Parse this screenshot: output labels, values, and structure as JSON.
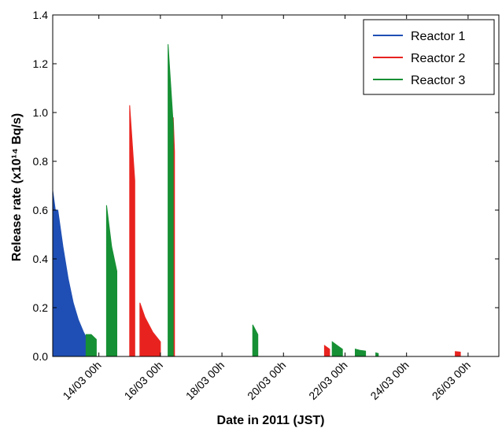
{
  "chart_data": {
    "type": "area",
    "title": "",
    "xlabel": "Date in 2011 (JST)",
    "ylabel": "Release rate (x10¹⁴ Bq/s)",
    "ylim": [
      0,
      1.4
    ],
    "xlim": [
      "2011-03-12T12:00",
      "2011-03-27T00:00"
    ],
    "yticks": [
      0.0,
      0.2,
      0.4,
      0.6,
      0.8,
      1.0,
      1.2,
      1.4
    ],
    "ytick_labels": [
      "0.0",
      "0.2",
      "0.4",
      "0.6",
      "0.8",
      "1.0",
      "1.2",
      "1.4"
    ],
    "xticks": [
      "2011-03-14T00:00",
      "2011-03-16T00:00",
      "2011-03-18T00:00",
      "2011-03-20T00:00",
      "2011-03-22T00:00",
      "2011-03-24T00:00",
      "2011-03-26T00:00"
    ],
    "xtick_labels": [
      "14/03 00h",
      "16/03 00h",
      "18/03 00h",
      "20/03 00h",
      "22/03 00h",
      "24/03 00h",
      "26/03 00h"
    ],
    "grid": false,
    "legend_position": "top-right",
    "series": [
      {
        "name": "Reactor 1",
        "color": "#1f4fb4",
        "segments": [
          [
            [
              "2011-03-12T12:00",
              0.68
            ],
            [
              "2011-03-12T14:00",
              0.6
            ],
            [
              "2011-03-12T16:00",
              0.6
            ],
            [
              "2011-03-12T20:00",
              0.45
            ],
            [
              "2011-03-13T00:00",
              0.32
            ],
            [
              "2011-03-13T04:00",
              0.22
            ],
            [
              "2011-03-13T08:00",
              0.15
            ],
            [
              "2011-03-13T12:00",
              0.1
            ],
            [
              "2011-03-13T14:00",
              0.08
            ]
          ]
        ]
      },
      {
        "name": "Reactor 2",
        "color": "#e8231f",
        "segments": [
          [
            [
              "2011-03-15T00:00",
              1.03
            ],
            [
              "2011-03-15T04:00",
              0.72
            ]
          ],
          [
            [
              "2011-03-15T08:00",
              0.22
            ],
            [
              "2011-03-15T12:00",
              0.16
            ],
            [
              "2011-03-15T18:00",
              0.1
            ],
            [
              "2011-03-16T00:00",
              0.06
            ]
          ],
          [
            [
              "2011-03-16T10:00",
              0.98
            ],
            [
              "2011-03-16T11:00",
              0.84
            ]
          ],
          [
            [
              "2011-03-21T08:00",
              0.045
            ],
            [
              "2011-03-21T12:00",
              0.03
            ]
          ],
          [
            [
              "2011-03-25T14:00",
              0.02
            ],
            [
              "2011-03-25T18:00",
              0.018
            ]
          ]
        ]
      },
      {
        "name": "Reactor 3",
        "color": "#169034",
        "segments": [
          [
            [
              "2011-03-13T14:00",
              0.09
            ],
            [
              "2011-03-13T18:00",
              0.09
            ],
            [
              "2011-03-13T22:00",
              0.07
            ]
          ],
          [
            [
              "2011-03-14T06:00",
              0.62
            ],
            [
              "2011-03-14T10:00",
              0.45
            ],
            [
              "2011-03-14T14:00",
              0.35
            ]
          ],
          [
            [
              "2011-03-16T06:00",
              1.28
            ],
            [
              "2011-03-16T10:00",
              0.95
            ]
          ],
          [
            [
              "2011-03-19T00:00",
              0.13
            ],
            [
              "2011-03-19T04:00",
              0.09
            ]
          ],
          [
            [
              "2011-03-21T14:00",
              0.06
            ],
            [
              "2011-03-21T18:00",
              0.045
            ],
            [
              "2011-03-21T22:00",
              0.03
            ]
          ],
          [
            [
              "2011-03-22T08:00",
              0.03
            ],
            [
              "2011-03-22T12:00",
              0.025
            ],
            [
              "2011-03-22T16:00",
              0.022
            ]
          ],
          [
            [
              "2011-03-23T00:00",
              0.015
            ],
            [
              "2011-03-23T02:00",
              0.012
            ]
          ]
        ]
      }
    ]
  }
}
